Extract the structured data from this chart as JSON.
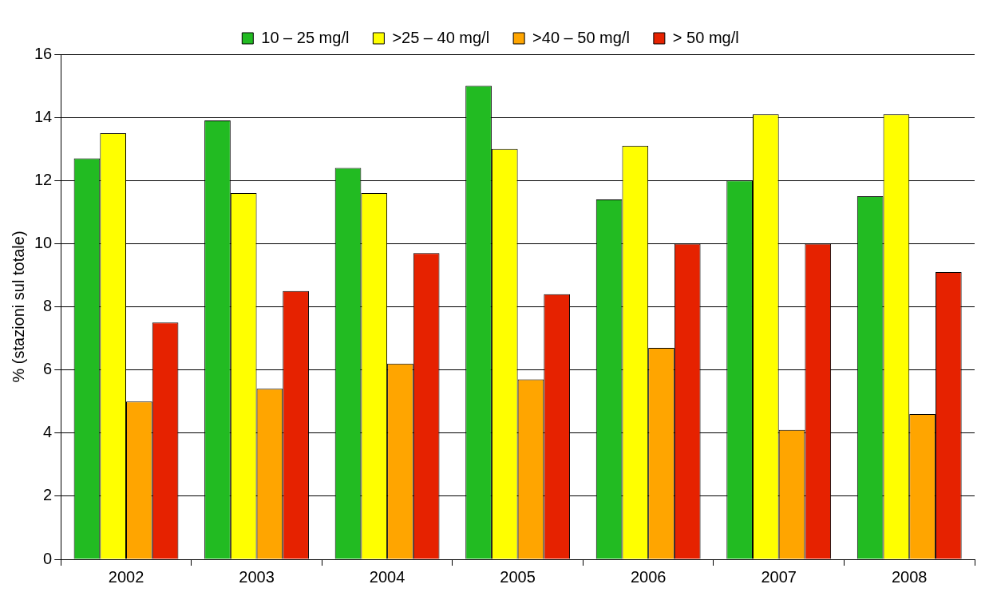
{
  "chart_data": {
    "type": "bar",
    "ylabel": "% (stazioni sul totale)",
    "categories": [
      "2002",
      "2003",
      "2004",
      "2005",
      "2006",
      "2007",
      "2008"
    ],
    "series": [
      {
        "name": "10 – 25 mg/l",
        "color": "#22bb22",
        "values": [
          12.7,
          13.9,
          12.4,
          15.0,
          11.4,
          12.0,
          11.5
        ]
      },
      {
        "name": ">25 – 40 mg/l",
        "color": "#ffff00",
        "values": [
          13.5,
          11.6,
          11.6,
          13.0,
          13.1,
          14.1,
          14.1
        ]
      },
      {
        "name": ">40 – 50 mg/l",
        "color": "#ffa500",
        "values": [
          5.0,
          5.4,
          6.2,
          5.7,
          6.7,
          4.1,
          4.6
        ]
      },
      {
        "name": "> 50 mg/l",
        "color": "#e62200",
        "values": [
          7.5,
          8.5,
          9.7,
          8.4,
          10.0,
          10.0,
          9.1
        ]
      }
    ],
    "ylim": [
      0,
      16
    ],
    "yticks": [
      0,
      2,
      4,
      6,
      8,
      10,
      12,
      14,
      16
    ],
    "grid": "y",
    "legend": "top"
  }
}
